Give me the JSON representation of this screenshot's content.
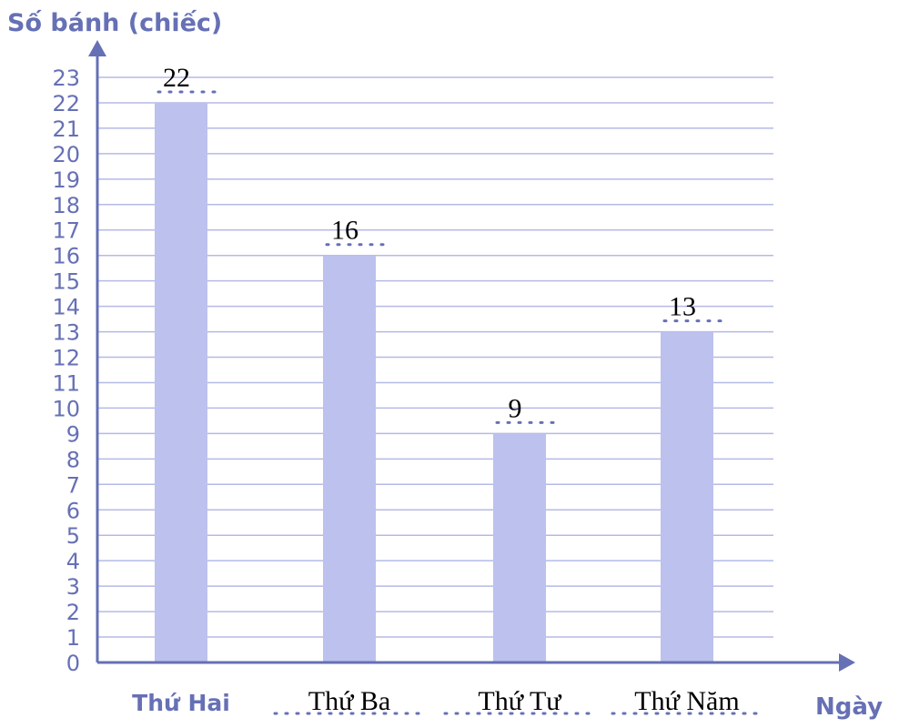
{
  "chart_data": {
    "type": "bar",
    "ylabel": "Số bánh (chiếc)",
    "xlabel": "Ngày",
    "categories": [
      "Thứ Hai",
      "Thứ Ba",
      "Thứ Tư",
      "Thứ Năm"
    ],
    "values": [
      22,
      16,
      9,
      13
    ],
    "data_labels": [
      "22",
      "16",
      "9",
      "13"
    ],
    "ylim": [
      0,
      23
    ],
    "yticks": [
      0,
      1,
      2,
      3,
      4,
      5,
      6,
      7,
      8,
      9,
      10,
      11,
      12,
      13,
      14,
      15,
      16,
      17,
      18,
      19,
      20,
      21,
      22,
      23
    ],
    "grid": true,
    "colors": {
      "bar": "#bcc1ee",
      "axis": "#6670b5",
      "grid": "#b5bae6"
    }
  }
}
